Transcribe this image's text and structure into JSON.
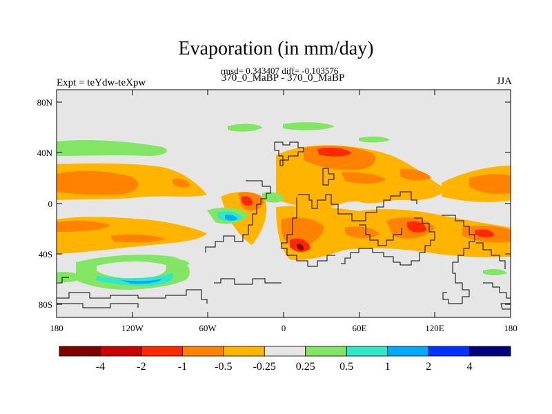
{
  "header": {
    "title": "Evaporation (in mm/day)",
    "stats": "rmsd= 0.343407 diff= -0.103576",
    "subtitle": "370_0_MaBP - 370_0_MaBP",
    "expt": "Expt = teYdw-teXpw",
    "season": "JJA"
  },
  "map": {
    "lat_ticks": [
      "80N",
      "40N",
      "0",
      "40S",
      "80S"
    ],
    "lon_ticks": [
      "180",
      "120W",
      "60W",
      "0",
      "60E",
      "120E",
      "180"
    ],
    "background_color": "#e6e6e6"
  },
  "colorbar": {
    "labels": [
      "-4",
      "-2",
      "-1",
      "-0.5",
      "-0.25",
      "0.25",
      "0.5",
      "1",
      "2",
      "4"
    ],
    "colors": [
      "#800000",
      "#c80000",
      "#ff2800",
      "#ff8200",
      "#ffb400",
      "#e6e6e6",
      "#82e664",
      "#32e6c8",
      "#00aaff",
      "#0032ff",
      "#000080"
    ]
  },
  "chart_data": {
    "type": "heatmap",
    "title": "Evaporation (in mm/day)",
    "variable": "Evaporation difference",
    "units": "mm/day",
    "x_range": [
      "180",
      "180"
    ],
    "y_range": [
      "90S",
      "90N"
    ],
    "contour_levels": [
      -4,
      -2,
      -1,
      -0.5,
      -0.25,
      0.25,
      0.5,
      1,
      2,
      4
    ]
  }
}
